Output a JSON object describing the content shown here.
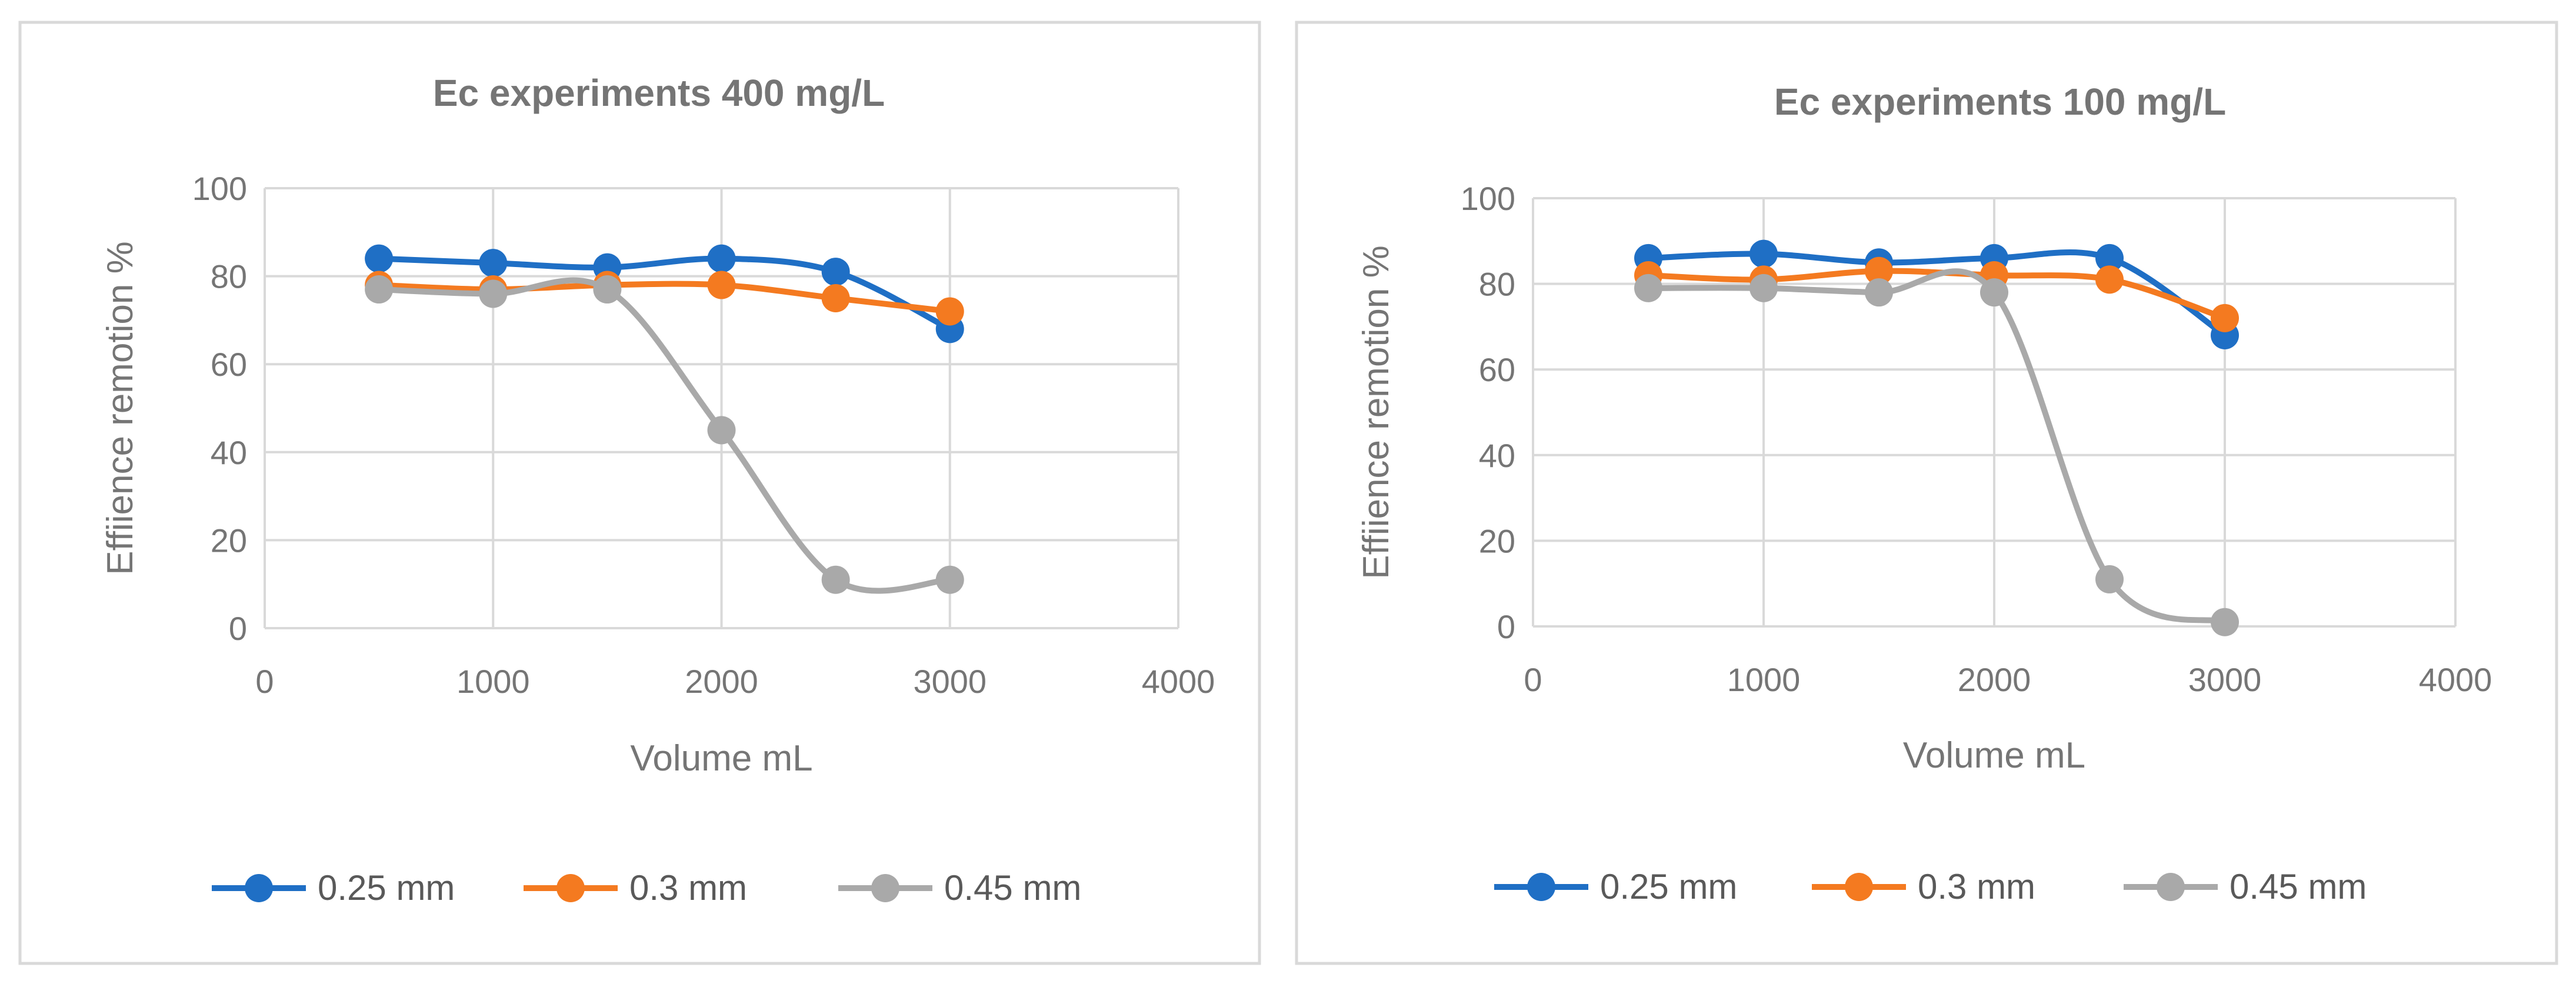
{
  "chart_data": [
    {
      "type": "line",
      "title": "Ec experiments 400 mg/L",
      "xlabel": "Volume mL",
      "ylabel": "Effiience remotion %",
      "xlim": [
        0,
        4000
      ],
      "ylim": [
        0,
        100
      ],
      "xticks": [
        0,
        1000,
        2000,
        3000,
        4000
      ],
      "yticks": [
        0,
        20,
        40,
        60,
        80,
        100
      ],
      "grid": true,
      "legend_position": "bottom",
      "x": [
        500,
        1000,
        1500,
        2000,
        2500,
        3000
      ],
      "series": [
        {
          "name": "0.25 mm",
          "color": "#1F6FC5",
          "values": [
            84,
            83,
            82,
            84,
            81,
            68
          ]
        },
        {
          "name": "0.3 mm",
          "color": "#F47A20",
          "values": [
            78,
            77,
            78,
            78,
            75,
            72
          ]
        },
        {
          "name": "0.45 mm",
          "color": "#A9A9A9",
          "values": [
            77,
            76,
            77,
            45,
            11,
            11
          ]
        }
      ]
    },
    {
      "type": "line",
      "title": "Ec experiments 100 mg/L",
      "xlabel": "Volume mL",
      "ylabel": "Effiience remotion %",
      "xlim": [
        0,
        4000
      ],
      "ylim": [
        0,
        100
      ],
      "xticks": [
        0,
        1000,
        2000,
        3000,
        4000
      ],
      "yticks": [
        0,
        20,
        40,
        60,
        80,
        100
      ],
      "grid": true,
      "legend_position": "bottom",
      "x": [
        500,
        1000,
        1500,
        2000,
        2500,
        3000
      ],
      "series": [
        {
          "name": "0.25 mm",
          "color": "#1F6FC5",
          "values": [
            86,
            87,
            85,
            86,
            86,
            68
          ]
        },
        {
          "name": "0.3 mm",
          "color": "#F47A20",
          "values": [
            82,
            81,
            83,
            82,
            81,
            72
          ]
        },
        {
          "name": "0.45 mm",
          "color": "#A9A9A9",
          "values": [
            79,
            79,
            78,
            78,
            11,
            1
          ]
        }
      ]
    }
  ]
}
